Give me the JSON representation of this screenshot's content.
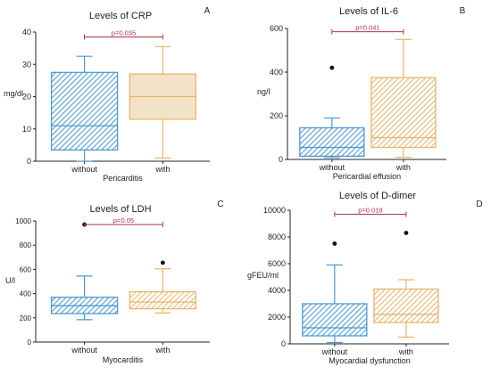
{
  "chart_data": [
    {
      "type": "boxplot",
      "panel_letter": "A",
      "title": "Levels of CRP",
      "xlabel": "Pericarditis",
      "ylabel": "mg/dl",
      "ylim": [
        0,
        40
      ],
      "yticks": [
        0,
        10,
        20,
        30,
        40
      ],
      "categories": [
        "without",
        "with"
      ],
      "boxes": [
        {
          "min": 0,
          "q1": 3.5,
          "median": 11,
          "q3": 27.5,
          "max": 32.5,
          "outliers": []
        },
        {
          "min": 1,
          "q1": 13,
          "median": 20,
          "q3": 27,
          "max": 35.5,
          "outliers": []
        }
      ],
      "annotation": "p=0.035",
      "annotation_y": 38.5
    },
    {
      "type": "boxplot",
      "panel_letter": "B",
      "title": "Levels of IL-6",
      "xlabel": "Pericardial effusion",
      "ylabel": "ng/l",
      "ylim": [
        0,
        600
      ],
      "yticks": [
        0,
        200,
        400,
        600
      ],
      "categories": [
        "without",
        "with"
      ],
      "boxes": [
        {
          "min": 8,
          "q1": 15,
          "median": 55,
          "q3": 145,
          "max": 190,
          "outliers": [
            420
          ]
        },
        {
          "min": 10,
          "q1": 55,
          "median": 100,
          "q3": 375,
          "max": 550,
          "outliers": []
        }
      ],
      "annotation": "p=0.041",
      "annotation_y": 585
    },
    {
      "type": "boxplot",
      "panel_letter": "C",
      "title": "Levels of LDH",
      "xlabel": "Myocarditis",
      "ylabel": "U/l",
      "ylim": [
        0,
        1000
      ],
      "yticks": [
        0,
        200,
        400,
        600,
        800,
        1000
      ],
      "categories": [
        "without",
        "with"
      ],
      "boxes": [
        {
          "min": 185,
          "q1": 235,
          "median": 300,
          "q3": 370,
          "max": 545,
          "outliers": [
            970
          ]
        },
        {
          "min": 240,
          "q1": 275,
          "median": 330,
          "q3": 415,
          "max": 605,
          "outliers": [
            655
          ]
        }
      ],
      "annotation": "p=0.05",
      "annotation_y": 970
    },
    {
      "type": "boxplot",
      "panel_letter": "D",
      "title": "Levels of D-dimer",
      "xlabel": "Myocardial dysfunction",
      "ylabel": "gFEU/ml",
      "ylim": [
        0,
        10000
      ],
      "yticks": [
        0,
        2000,
        4000,
        6000,
        8000,
        10000
      ],
      "categories": [
        "without",
        "with"
      ],
      "boxes": [
        {
          "min": 100,
          "q1": 600,
          "median": 1200,
          "q3": 3000,
          "max": 5900,
          "outliers": [
            7500
          ]
        },
        {
          "min": 500,
          "q1": 1600,
          "median": 2200,
          "q3": 4100,
          "max": 4800,
          "outliers": [
            8300
          ]
        }
      ],
      "annotation": "p=0.018",
      "annotation_y": 9700
    }
  ],
  "colors": {
    "without": "#4a9ad4",
    "with": "#e8b56a",
    "annotation": "#b03050",
    "axis": "#222222",
    "outlier": "#111111"
  }
}
